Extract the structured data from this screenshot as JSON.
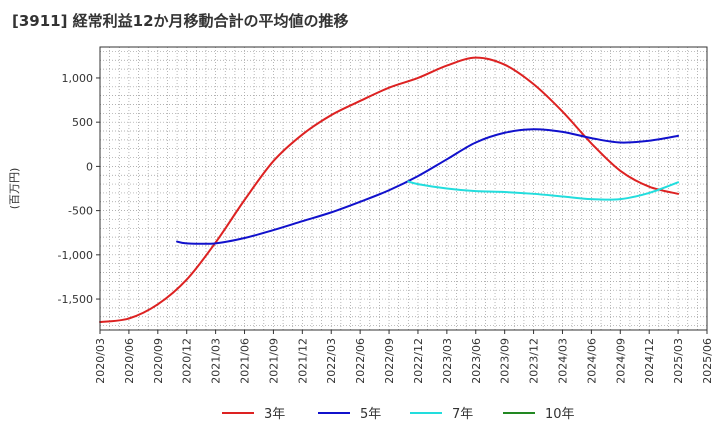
{
  "chart_data": {
    "type": "line",
    "title": "[3911]  経常利益12か月移動合計の平均値の推移",
    "ylabel": "(百万円)",
    "xlabel": "",
    "ylim": [
      -1850,
      1350
    ],
    "yticks": [
      1000,
      500,
      0,
      -500,
      -1000,
      -1500
    ],
    "ytick_labels": [
      "1,000",
      "500",
      "0",
      "-500",
      "-1,000",
      "-1,500"
    ],
    "xticks": [
      "2020/03",
      "2020/06",
      "2020/09",
      "2020/12",
      "2021/03",
      "2021/06",
      "2021/09",
      "2021/12",
      "2022/03",
      "2022/06",
      "2022/09",
      "2022/12",
      "2023/03",
      "2023/06",
      "2023/09",
      "2023/12",
      "2024/03",
      "2024/06",
      "2024/09",
      "2024/12",
      "2025/03",
      "2025/06"
    ],
    "grid": true,
    "legend_position": "bottom",
    "series": [
      {
        "name": "3年",
        "color": "#dd2222",
        "points": [
          [
            "2020/03",
            -1760
          ],
          [
            "2020/06",
            -1720
          ],
          [
            "2020/09",
            -1560
          ],
          [
            "2020/12",
            -1280
          ],
          [
            "2021/03",
            -860
          ],
          [
            "2021/06",
            -380
          ],
          [
            "2021/09",
            60
          ],
          [
            "2021/12",
            360
          ],
          [
            "2022/03",
            580
          ],
          [
            "2022/06",
            740
          ],
          [
            "2022/09",
            890
          ],
          [
            "2022/12",
            1000
          ],
          [
            "2023/03",
            1140
          ],
          [
            "2023/06",
            1230
          ],
          [
            "2023/09",
            1150
          ],
          [
            "2023/12",
            930
          ],
          [
            "2024/03",
            620
          ],
          [
            "2024/06",
            260
          ],
          [
            "2024/09",
            -50
          ],
          [
            "2024/12",
            -230
          ],
          [
            "2025/03",
            -310
          ]
        ]
      },
      {
        "name": "5年",
        "color": "#1111cc",
        "points": [
          [
            "2020/11",
            -850
          ],
          [
            "2020/12",
            -870
          ],
          [
            "2021/03",
            -870
          ],
          [
            "2021/06",
            -810
          ],
          [
            "2021/09",
            -720
          ],
          [
            "2021/12",
            -620
          ],
          [
            "2022/03",
            -520
          ],
          [
            "2022/06",
            -400
          ],
          [
            "2022/09",
            -270
          ],
          [
            "2022/12",
            -110
          ],
          [
            "2023/03",
            80
          ],
          [
            "2023/06",
            270
          ],
          [
            "2023/09",
            380
          ],
          [
            "2023/12",
            420
          ],
          [
            "2024/03",
            390
          ],
          [
            "2024/06",
            320
          ],
          [
            "2024/09",
            270
          ],
          [
            "2024/12",
            290
          ],
          [
            "2025/03",
            345
          ]
        ]
      },
      {
        "name": "7年",
        "color": "#22dddd",
        "points": [
          [
            "2022/11",
            -170
          ],
          [
            "2022/12",
            -200
          ],
          [
            "2023/03",
            -250
          ],
          [
            "2023/06",
            -280
          ],
          [
            "2023/09",
            -290
          ],
          [
            "2023/12",
            -310
          ],
          [
            "2024/03",
            -340
          ],
          [
            "2024/06",
            -370
          ],
          [
            "2024/09",
            -370
          ],
          [
            "2024/12",
            -300
          ],
          [
            "2025/03",
            -180
          ]
        ]
      },
      {
        "name": "10年",
        "color": "#228822",
        "points": []
      }
    ]
  }
}
